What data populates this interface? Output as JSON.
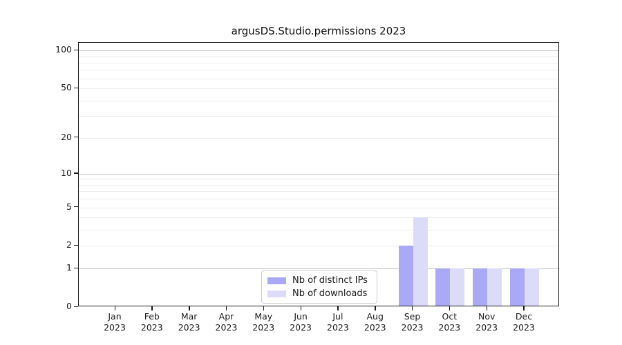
{
  "window": {
    "background": "#ffffff"
  },
  "chart_data": {
    "type": "bar",
    "title": "argusDS.Studio.permissions 2023",
    "categories": [
      "Jan",
      "Feb",
      "Mar",
      "Apr",
      "May",
      "Jun",
      "Jul",
      "Aug",
      "Sep",
      "Oct",
      "Nov",
      "Dec"
    ],
    "category_year": "2023",
    "series": [
      {
        "name": "Nb of distinct IPs",
        "color": "#a9a9f6",
        "values": [
          0,
          0,
          0,
          0,
          0,
          0,
          0,
          0,
          2,
          1,
          1,
          1
        ]
      },
      {
        "name": "Nb of downloads",
        "color": "#dcdcf9",
        "values": [
          0,
          0,
          0,
          0,
          0,
          0,
          0,
          0,
          4,
          1,
          1,
          1
        ]
      }
    ],
    "yscale": "log1p",
    "ylim": [
      0,
      100
    ],
    "yticks": [
      0,
      1,
      2,
      5,
      10,
      20,
      50,
      100
    ],
    "grid": {
      "major": [
        1,
        10,
        100
      ],
      "minor": [
        2,
        3,
        4,
        5,
        6,
        7,
        8,
        9,
        20,
        30,
        40,
        50,
        60,
        70,
        80,
        90
      ],
      "major_color": "#c6c6c6",
      "minor_color": "#ededed"
    },
    "legend": {
      "position": "lower center"
    },
    "axis_color": "#1a1a1a",
    "text_color": "#1a1a1a"
  }
}
